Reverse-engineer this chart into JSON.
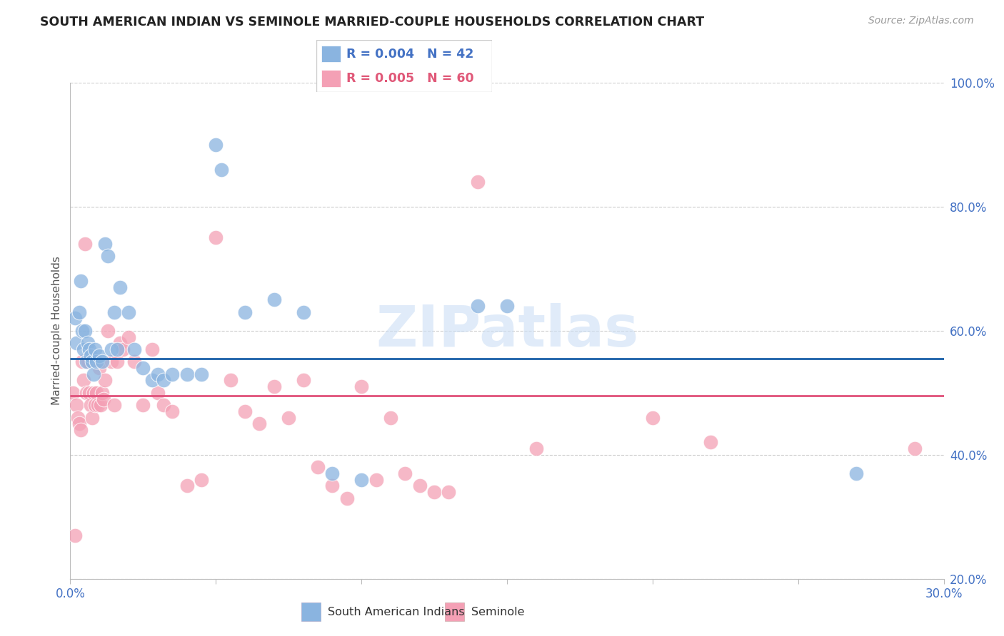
{
  "title": "SOUTH AMERICAN INDIAN VS SEMINOLE MARRIED-COUPLE HOUSEHOLDS CORRELATION CHART",
  "source": "Source: ZipAtlas.com",
  "ylabel": "Married-couple Households",
  "xlim": [
    0.0,
    30.0
  ],
  "ylim": [
    20.0,
    100.0
  ],
  "ytick_vals": [
    20,
    40,
    60,
    80,
    100
  ],
  "ytick_labels": [
    "20.0%",
    "40.0%",
    "60.0%",
    "80.0%",
    "100.0%"
  ],
  "xtick_positions": [
    0,
    5,
    10,
    15,
    20,
    25,
    30
  ],
  "blue_mean_y": 55.5,
  "pink_mean_y": 49.5,
  "blue_color": "#8ab4e0",
  "pink_color": "#f4a0b5",
  "blue_line_color": "#1a5fa8",
  "pink_line_color": "#e0507a",
  "watermark": "ZIPatlas",
  "blue_scatter": [
    [
      0.15,
      62
    ],
    [
      0.2,
      58
    ],
    [
      0.3,
      63
    ],
    [
      0.35,
      68
    ],
    [
      0.4,
      60
    ],
    [
      0.45,
      57
    ],
    [
      0.5,
      60
    ],
    [
      0.55,
      55
    ],
    [
      0.6,
      58
    ],
    [
      0.65,
      57
    ],
    [
      0.7,
      56
    ],
    [
      0.75,
      55
    ],
    [
      0.8,
      53
    ],
    [
      0.85,
      57
    ],
    [
      0.9,
      55
    ],
    [
      1.0,
      56
    ],
    [
      1.1,
      55
    ],
    [
      1.2,
      74
    ],
    [
      1.3,
      72
    ],
    [
      1.4,
      57
    ],
    [
      1.5,
      63
    ],
    [
      1.6,
      57
    ],
    [
      1.7,
      67
    ],
    [
      2.0,
      63
    ],
    [
      2.2,
      57
    ],
    [
      2.5,
      54
    ],
    [
      2.8,
      52
    ],
    [
      3.0,
      53
    ],
    [
      3.2,
      52
    ],
    [
      3.5,
      53
    ],
    [
      4.0,
      53
    ],
    [
      4.5,
      53
    ],
    [
      5.0,
      90
    ],
    [
      5.2,
      86
    ],
    [
      6.0,
      63
    ],
    [
      7.0,
      65
    ],
    [
      8.0,
      63
    ],
    [
      9.0,
      37
    ],
    [
      10.0,
      36
    ],
    [
      14.0,
      64
    ],
    [
      15.0,
      64
    ],
    [
      27.0,
      37
    ]
  ],
  "pink_scatter": [
    [
      0.1,
      50
    ],
    [
      0.15,
      27
    ],
    [
      0.2,
      48
    ],
    [
      0.25,
      46
    ],
    [
      0.3,
      45
    ],
    [
      0.35,
      44
    ],
    [
      0.4,
      55
    ],
    [
      0.45,
      52
    ],
    [
      0.5,
      74
    ],
    [
      0.55,
      50
    ],
    [
      0.6,
      55
    ],
    [
      0.65,
      50
    ],
    [
      0.7,
      48
    ],
    [
      0.75,
      46
    ],
    [
      0.8,
      50
    ],
    [
      0.85,
      48
    ],
    [
      0.9,
      50
    ],
    [
      0.95,
      48
    ],
    [
      1.0,
      54
    ],
    [
      1.05,
      48
    ],
    [
      1.1,
      50
    ],
    [
      1.15,
      49
    ],
    [
      1.2,
      52
    ],
    [
      1.3,
      60
    ],
    [
      1.4,
      55
    ],
    [
      1.5,
      48
    ],
    [
      1.6,
      55
    ],
    [
      1.7,
      58
    ],
    [
      1.8,
      57
    ],
    [
      2.0,
      59
    ],
    [
      2.2,
      55
    ],
    [
      2.5,
      48
    ],
    [
      2.8,
      57
    ],
    [
      3.0,
      50
    ],
    [
      3.2,
      48
    ],
    [
      3.5,
      47
    ],
    [
      4.0,
      35
    ],
    [
      4.5,
      36
    ],
    [
      5.0,
      75
    ],
    [
      5.5,
      52
    ],
    [
      6.0,
      47
    ],
    [
      6.5,
      45
    ],
    [
      7.0,
      51
    ],
    [
      7.5,
      46
    ],
    [
      8.0,
      52
    ],
    [
      8.5,
      38
    ],
    [
      9.0,
      35
    ],
    [
      9.5,
      33
    ],
    [
      10.0,
      51
    ],
    [
      10.5,
      36
    ],
    [
      11.0,
      46
    ],
    [
      11.5,
      37
    ],
    [
      12.0,
      35
    ],
    [
      12.5,
      34
    ],
    [
      13.0,
      34
    ],
    [
      14.0,
      84
    ],
    [
      16.0,
      41
    ],
    [
      20.0,
      46
    ],
    [
      22.0,
      42
    ],
    [
      29.0,
      41
    ]
  ]
}
